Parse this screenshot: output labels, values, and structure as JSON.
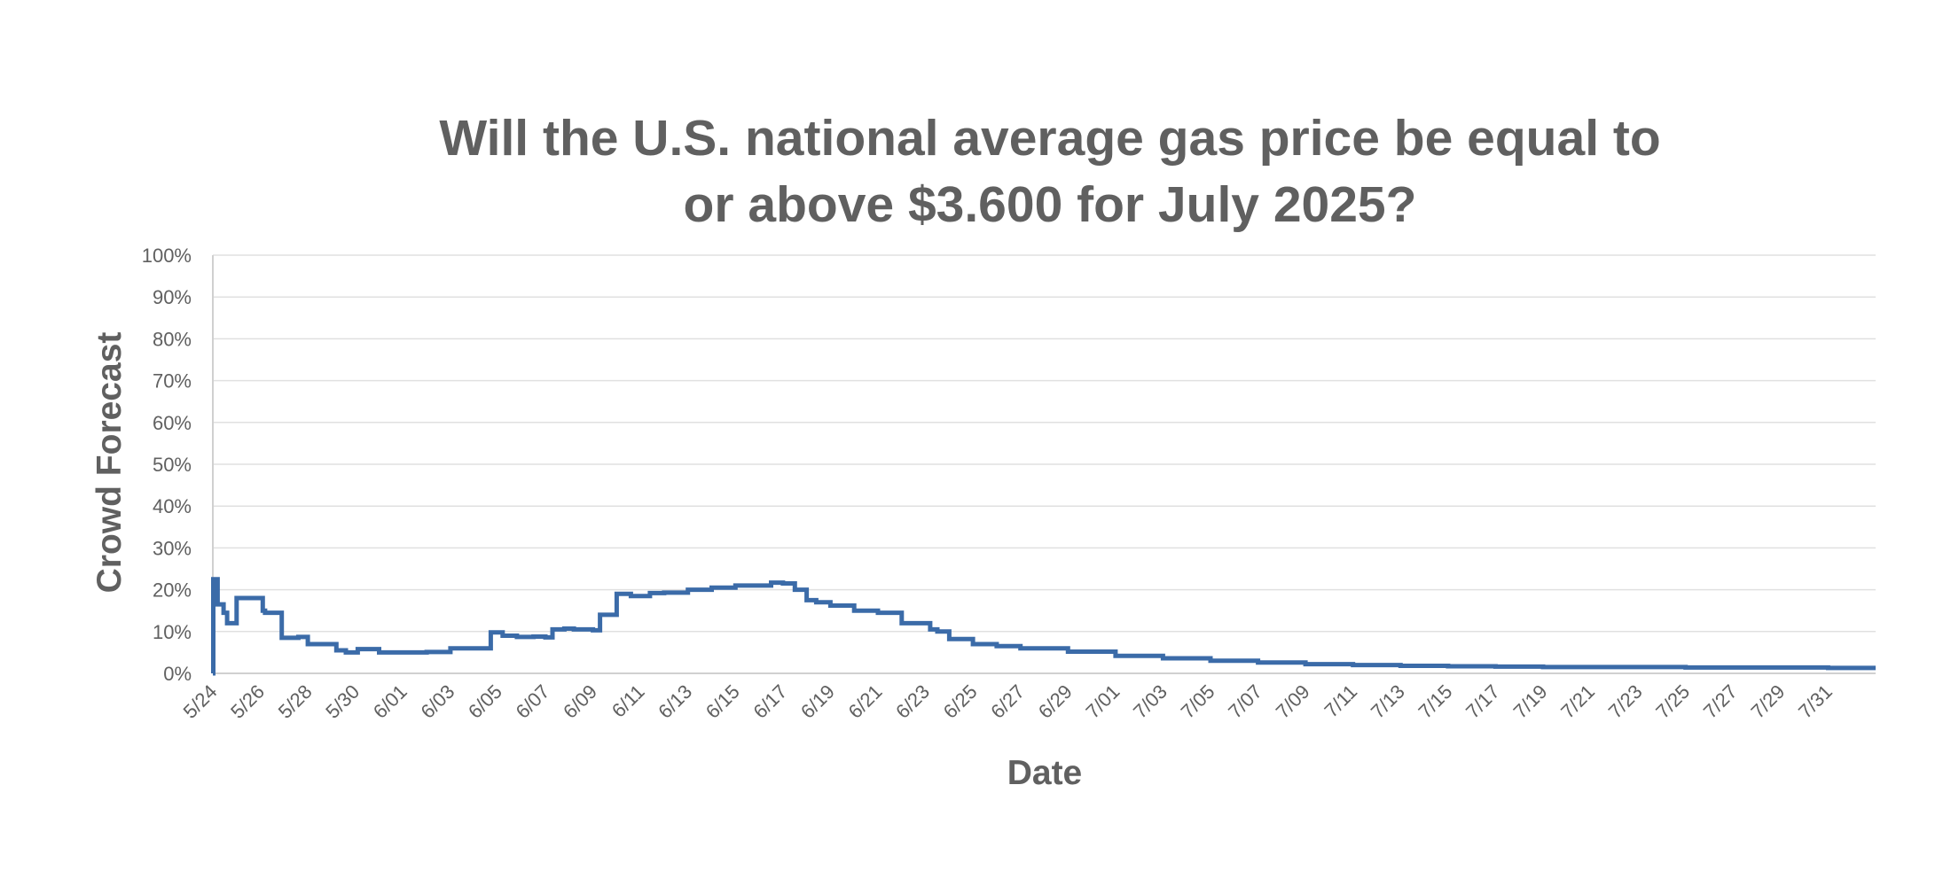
{
  "chart_data": {
    "type": "line",
    "step": true,
    "title_lines": [
      "Will the U.S. national average gas price be equal to",
      "or above $3.600 for July 2025?"
    ],
    "xlabel": "Date",
    "ylabel": "Crowd Forecast",
    "ylim": [
      0,
      100
    ],
    "y_ticks": [
      0,
      10,
      20,
      30,
      40,
      50,
      60,
      70,
      80,
      90,
      100
    ],
    "y_tick_labels": [
      "0%",
      "10%",
      "20%",
      "30%",
      "40%",
      "50%",
      "60%",
      "70%",
      "80%",
      "90%",
      "100%"
    ],
    "x_range_days": [
      0,
      70
    ],
    "x_tick_days": [
      0,
      2,
      4,
      6,
      8,
      10,
      12,
      14,
      16,
      18,
      20,
      22,
      24,
      26,
      28,
      30,
      32,
      34,
      36,
      38,
      40,
      42,
      44,
      46,
      48,
      50,
      52,
      54,
      56,
      58,
      60,
      62,
      64,
      66,
      68
    ],
    "x_tick_labels": [
      "5/24",
      "5/26",
      "5/28",
      "5/30",
      "6/01",
      "6/03",
      "6/05",
      "6/07",
      "6/09",
      "6/11",
      "6/13",
      "6/15",
      "6/17",
      "6/19",
      "6/21",
      "6/23",
      "6/25",
      "6/27",
      "6/29",
      "7/01",
      "7/03",
      "7/05",
      "7/07",
      "7/09",
      "7/11",
      "7/13",
      "7/15",
      "7/17",
      "7/19",
      "7/21",
      "7/23",
      "7/25",
      "7/27",
      "7/29",
      "7/31"
    ],
    "series": [
      {
        "name": "Crowd Forecast",
        "color": "#3b6ba8",
        "x_days": [
          0,
          0.02,
          0.2,
          0.45,
          0.6,
          1.0,
          2.1,
          2.2,
          2.9,
          3.6,
          4.0,
          5.2,
          5.6,
          6.1,
          7.0,
          9.0,
          10.0,
          11.7,
          12.2,
          12.8,
          13.5,
          14.0,
          14.3,
          14.8,
          15.2,
          16.0,
          16.3,
          17.0,
          17.6,
          18.4,
          19.0,
          20.0,
          21.0,
          22.0,
          23.5,
          24.0,
          24.5,
          25.0,
          25.4,
          26.0,
          27.0,
          28.0,
          29.0,
          30.2,
          30.5,
          31.0,
          32.0,
          33.0,
          34.0,
          36.0,
          38.0,
          40.0,
          42.0,
          44.0,
          46.0,
          48.0,
          50.0,
          52.0,
          54.0,
          56.0,
          58.0,
          60.0,
          62.0,
          64.0,
          66.0,
          68.0,
          70.0
        ],
        "y_values": [
          0,
          22.5,
          16.5,
          14.5,
          12.0,
          18.0,
          15.0,
          14.5,
          8.5,
          8.7,
          7.0,
          5.5,
          5.0,
          5.8,
          5.0,
          5.1,
          6.0,
          9.8,
          9.0,
          8.7,
          8.8,
          8.6,
          10.5,
          10.7,
          10.5,
          10.3,
          14.0,
          19.0,
          18.5,
          19.2,
          19.3,
          20.0,
          20.5,
          21.0,
          21.7,
          21.5,
          20.0,
          17.5,
          17.0,
          16.2,
          15.0,
          14.5,
          12.0,
          10.5,
          10.0,
          8.2,
          7.0,
          6.5,
          6.0,
          5.2,
          4.2,
          3.6,
          3.0,
          2.6,
          2.2,
          2.0,
          1.8,
          1.7,
          1.6,
          1.5,
          1.5,
          1.5,
          1.4,
          1.4,
          1.4,
          1.3,
          1.3
        ]
      }
    ]
  }
}
